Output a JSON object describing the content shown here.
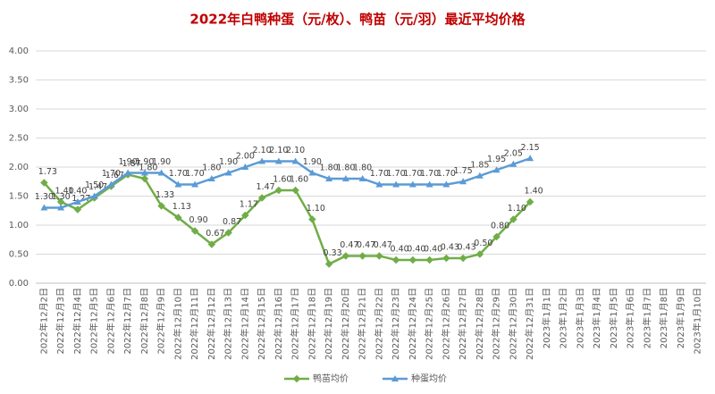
{
  "chart_data": {
    "type": "line",
    "title": "2022年白鸭种蛋（元/枚）、鸭苗（元/羽）最近平均价格",
    "categories": [
      "2022年12月2日",
      "2022年12月3日",
      "2022年12月4日",
      "2022年12月5日",
      "2022年12月6日",
      "2022年12月7日",
      "2022年12月8日",
      "2022年12月9日",
      "2022年12月10日",
      "2022年12月11日",
      "2022年12月12日",
      "2022年12月13日",
      "2022年12月14日",
      "2022年12月15日",
      "2022年12月16日",
      "2022年12月17日",
      "2022年12月18日",
      "2022年12月19日",
      "2022年12月20日",
      "2022年12月21日",
      "2022年12月22日",
      "2022年12月23日",
      "2022年12月24日",
      "2022年12月25日",
      "2022年12月26日",
      "2022年12月27日",
      "2022年12月28日",
      "2022年12月29日",
      "2022年12月30日",
      "2022年12月31日",
      "2023年1月1日",
      "2023年1月2日",
      "2023年1月3日",
      "2023年1月4日",
      "2023年1月5日",
      "2023年1月6日",
      "2023年1月7日",
      "2023年1月8日",
      "2023年1月9日",
      "2023年1月10日"
    ],
    "series": [
      {
        "name": "鸭苗均价",
        "color": "#70ad47",
        "values": [
          1.73,
          1.4,
          1.27,
          1.47,
          1.67,
          1.87,
          1.8,
          1.33,
          1.13,
          0.9,
          0.67,
          0.87,
          1.17,
          1.47,
          1.6,
          1.6,
          1.1,
          0.33,
          0.47,
          0.47,
          0.47,
          0.4,
          0.4,
          0.4,
          0.43,
          0.43,
          0.5,
          0.8,
          1.1,
          1.4,
          null,
          null,
          null,
          null,
          null,
          null,
          null,
          null,
          null,
          null
        ],
        "value_labels": [
          "1.73",
          "1.40",
          "1.27",
          "1.47",
          "1.67",
          "1.87",
          "1.80",
          "1.33",
          "1.13",
          "0.90",
          "0.67",
          "0.87",
          "1.17",
          "1.47",
          "1.60",
          "1.60",
          "1.10",
          "0.33",
          "0.47",
          "0.47",
          "0.47",
          "0.40",
          "0.40",
          "0.40",
          "0.43",
          "0.43",
          "0.50",
          "0.80",
          "1.10",
          "1.40",
          null,
          null,
          null,
          null,
          null,
          null,
          null,
          null,
          null,
          null
        ]
      },
      {
        "name": "种蛋均价",
        "color": "#5b9bd5",
        "values": [
          1.3,
          1.3,
          1.4,
          1.5,
          1.7,
          1.9,
          1.9,
          1.9,
          1.7,
          1.7,
          1.8,
          1.9,
          2.0,
          2.1,
          2.1,
          2.1,
          1.9,
          1.8,
          1.8,
          1.8,
          1.7,
          1.7,
          1.7,
          1.7,
          1.7,
          1.75,
          1.85,
          1.95,
          2.05,
          2.15,
          null,
          null,
          null,
          null,
          null,
          null,
          null,
          null,
          null,
          null
        ],
        "value_labels": [
          "1.30",
          "1.30",
          "1.40",
          "1.50",
          "1.70",
          "1.90",
          "1.90",
          "1.90",
          "1.70",
          "1.70",
          "1.80",
          "1.90",
          "2.00",
          "2.10",
          "2.10",
          "2.10",
          "1.90",
          "1.80",
          "1.80",
          "1.80",
          "1.70",
          "1.70",
          "1.70",
          "1.70",
          "1.70",
          "1.75",
          "1.85",
          "1.95",
          "2.05",
          "2.15",
          null,
          null,
          null,
          null,
          null,
          null,
          null,
          null,
          null,
          null
        ]
      }
    ],
    "ylim": [
      0,
      4
    ],
    "yticks": [
      {
        "value": 0,
        "label": "0.00"
      },
      {
        "value": 0.5,
        "label": "0.50"
      },
      {
        "value": 1,
        "label": "1.00"
      },
      {
        "value": 1.5,
        "label": "1.50"
      },
      {
        "value": 2,
        "label": "2.00"
      },
      {
        "value": 2.5,
        "label": "2.50"
      },
      {
        "value": 3,
        "label": "3.00"
      },
      {
        "value": 3.5,
        "label": "3.50"
      },
      {
        "value": 4,
        "label": "4.00"
      }
    ],
    "grid": true,
    "legend": "bottom"
  }
}
